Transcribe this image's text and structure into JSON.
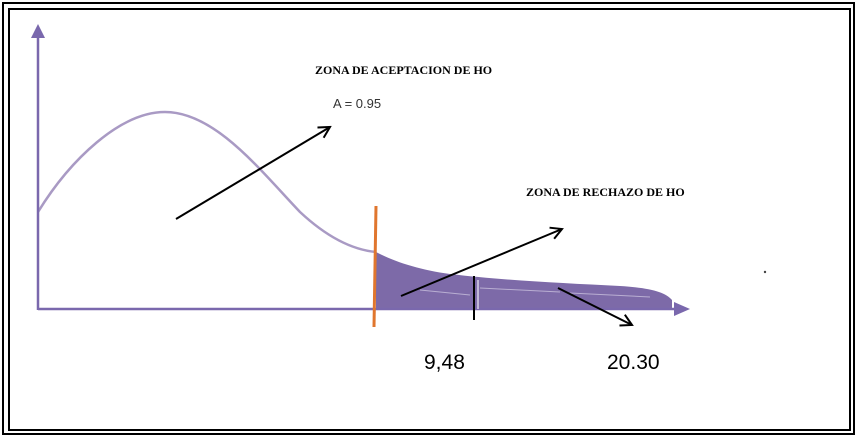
{
  "labels": {
    "acceptance_zone": "ZONA DE ACEPTACION DE HO",
    "acceptance_area": "A = 0.95",
    "rejection_zone": "ZONA DE RECHAZO DE HO",
    "critical_value": "9,48",
    "test_statistic": "20.30"
  },
  "colors": {
    "curve": "#a99ac4",
    "axis": "#7a68ad",
    "rejection_fill": "#7d6aa8",
    "critical_line": "#e0762e",
    "arrows": "#000000"
  }
}
